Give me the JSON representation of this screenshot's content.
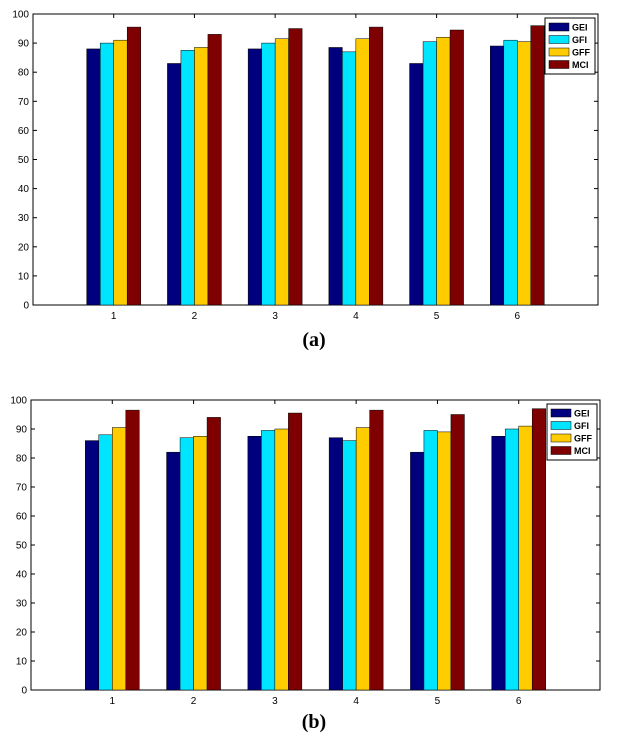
{
  "colors": {
    "GEI": "#00007f",
    "GFI": "#00e5ff",
    "GFF": "#ffcc00",
    "MCI": "#7f0000"
  },
  "chart_data": [
    {
      "type": "bar",
      "panel_label": "(a)",
      "categories": [
        "1",
        "2",
        "3",
        "4",
        "5",
        "6"
      ],
      "ylim": [
        0,
        100
      ],
      "yticks": [
        "0",
        "10",
        "20",
        "30",
        "40",
        "50",
        "60",
        "70",
        "80",
        "90",
        "100"
      ],
      "legend_position": "top-right",
      "grid": false,
      "series": [
        {
          "name": "GEI",
          "values": [
            88,
            83,
            88,
            88.5,
            83,
            89
          ]
        },
        {
          "name": "GFI",
          "values": [
            90,
            87.5,
            90,
            87,
            90.5,
            91
          ]
        },
        {
          "name": "GFF",
          "values": [
            91,
            88.5,
            91.5,
            91.5,
            92,
            90.5
          ]
        },
        {
          "name": "MCI",
          "values": [
            95.5,
            93,
            95,
            95.5,
            94.5,
            96
          ]
        }
      ]
    },
    {
      "type": "bar",
      "panel_label": "(b)",
      "categories": [
        "1",
        "2",
        "3",
        "4",
        "5",
        "6"
      ],
      "ylim": [
        0,
        100
      ],
      "yticks": [
        "0",
        "10",
        "20",
        "30",
        "40",
        "50",
        "60",
        "70",
        "80",
        "90",
        "100"
      ],
      "legend_position": "top-right",
      "grid": false,
      "series": [
        {
          "name": "GEI",
          "values": [
            86,
            82,
            87.5,
            87,
            82,
            87.5
          ]
        },
        {
          "name": "GFI",
          "values": [
            88,
            87,
            89.5,
            86,
            89.5,
            90
          ]
        },
        {
          "name": "GFF",
          "values": [
            90.5,
            87.5,
            90,
            90.5,
            89,
            91
          ]
        },
        {
          "name": "MCI",
          "values": [
            96.5,
            94,
            95.5,
            96.5,
            95,
            97
          ]
        }
      ]
    }
  ]
}
